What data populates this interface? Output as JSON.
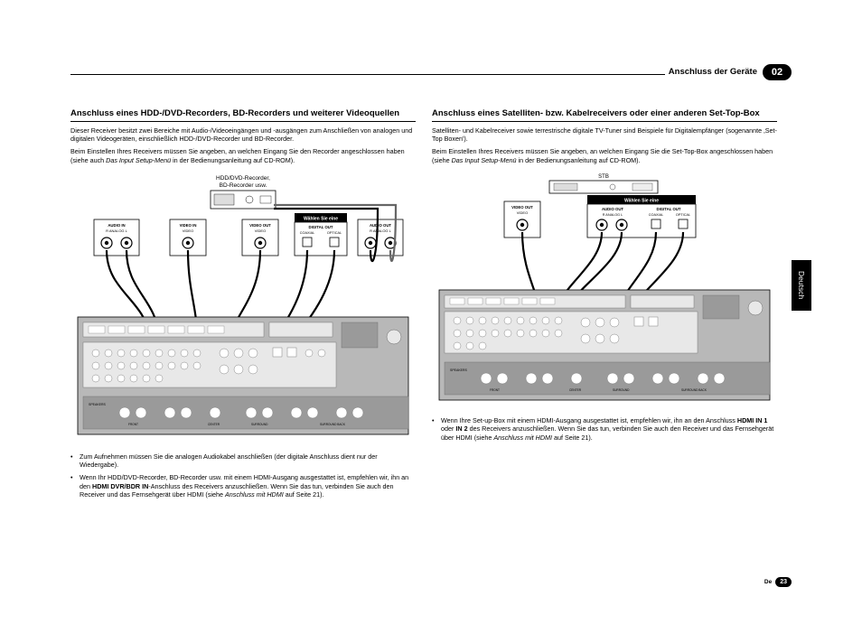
{
  "header": {
    "title": "Anschluss der Geräte",
    "chapter": "02"
  },
  "sideTab": "Deutsch",
  "footer": {
    "lang": "De",
    "page": "23"
  },
  "left": {
    "title": "Anschluss eines HDD-/DVD-Recorders, BD-Recorders und weiterer Videoquellen",
    "p1": "Dieser Receiver besitzt zwei Bereiche mit Audio-/Videoeingängen und -ausgängen zum Anschließen von analogen und digitalen Videogeräten, einschließlich HDD-/DVD-Recorder und BD-Recorder.",
    "p2a": "Beim Einstellen Ihres Receivers müssen Sie angeben, an welchen Eingang Sie den Recorder angeschlossen haben (siehe auch ",
    "p2i": "Das Input Setup-Menü",
    "p2b": " in der Bedienungsanleitung auf CD-ROM).",
    "diagram": {
      "deviceLabel1": "HDD/DVD-Recorder,",
      "deviceLabel2": "BD-Recorder usw.",
      "boxAudioIn": {
        "title": "AUDIO IN",
        "sub": "R  ANALOG  L"
      },
      "boxVideoIn": {
        "title": "VIDEO IN",
        "sub": "VIDEO"
      },
      "boxVideoOut": {
        "title": "VIDEO OUT",
        "sub": "VIDEO"
      },
      "boxDigital": {
        "banner": "Wählen Sie eine",
        "title": "DIGITAL OUT",
        "subL": "COAXIAL",
        "subR": "OPTICAL"
      },
      "boxAudioOut": {
        "title": "AUDIO OUT",
        "sub": "R  ANALOG  L"
      },
      "panel": {
        "labels": [
          "ASSIGNABLE",
          "IN",
          "OUT",
          "VIDEO",
          "AUDIO",
          "SPEAKERS",
          "FRONT",
          "CENTER",
          "SURROUND",
          "SURROUND BACK",
          "ADAPTER PORT",
          "AC IN",
          "HDMI"
        ]
      }
    },
    "bullets": [
      "Zum Aufnehmen müssen Sie die analogen Audiokabel anschließen (der digitale Anschluss dient nur der Wiedergabe).",
      "Wenn Ihr HDD/DVD-Recorder, BD-Recorder usw. mit einem HDMI-Ausgang ausgestattet ist, empfehlen wir, ihn an den <b>HDMI DVR/BDR IN</b>-Anschluss des Receivers anzuschließen. Wenn Sie das tun, verbinden Sie auch den Receiver und das Fernsehgerät über HDMI (siehe <i>Anschluss mit HDMI</i> auf Seite 21)."
    ]
  },
  "right": {
    "title": "Anschluss eines Satelliten- bzw. Kabelreceivers oder einer anderen Set-Top-Box",
    "p1": "Satelliten- und Kabelreceiver sowie terrestrische digitale TV-Tuner sind Beispiele für Digitalempfänger (sogenannte ‚Set-Top Boxen').",
    "p2a": "Beim Einstellen Ihres Receivers müssen Sie angeben, an welchen Eingang Sie die Set-Top-Box angeschlossen haben (siehe ",
    "p2i": "Das Input Setup-Menü",
    "p2b": " in der Bedienungsanleitung auf CD-ROM).",
    "diagram": {
      "deviceLabel": "STB",
      "boxVideoOut": {
        "title": "VIDEO OUT",
        "sub": "VIDEO"
      },
      "boxAudioOut": {
        "banner": "Wählen Sie eine",
        "title": "AUDIO OUT",
        "subL": "R  ANALOG  L"
      },
      "boxDigital": {
        "title": "DIGITAL OUT",
        "subL": "COAXIAL",
        "subR": "OPTICAL"
      }
    },
    "bullets": [
      "Wenn Ihre Set-up-Box mit einem HDMI-Ausgang ausgestattet ist, empfehlen wir, ihn an den Anschluss <b>HDMI IN 1</b> oder <b>IN 2</b> des Receivers anzuschließen. Wenn Sie das tun, verbinden Sie auch den Receiver und das Fernsehgerät über HDMI (siehe <i>Anschluss mit HDMI</i> auf Seite 21)."
    ]
  },
  "colors": {
    "text": "#000000",
    "bg": "#ffffff",
    "panelGrey": "#b8b8b8",
    "panelMid": "#9a9a9a",
    "panelLight": "#e8e8e8"
  }
}
